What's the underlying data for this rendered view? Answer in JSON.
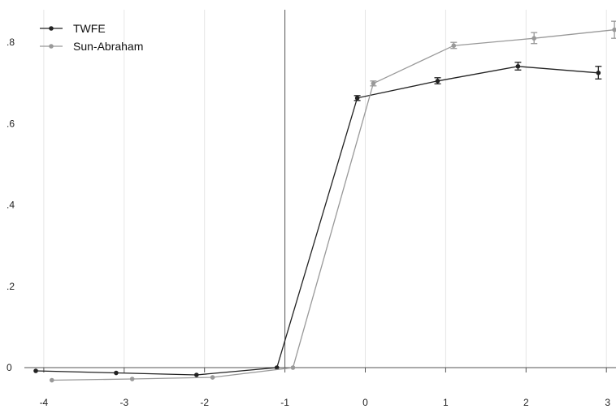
{
  "chart_data": {
    "type": "line",
    "title": "",
    "xlabel": "",
    "ylabel": "",
    "xlim": [
      -4.1,
      3.05
    ],
    "ylim": [
      0,
      0.83
    ],
    "x_ticks": [
      -4,
      -3,
      -2,
      -1,
      0,
      1,
      2,
      3
    ],
    "y_ticks": [
      0,
      0.2,
      0.4,
      0.6,
      0.8
    ],
    "x_tick_labels": [
      "-4",
      "-3",
      "-2",
      "-1",
      "0",
      "1",
      "2",
      "3"
    ],
    "y_tick_labels": [
      "0",
      ".2",
      ".4",
      ".6",
      ".8"
    ],
    "reference_lines": {
      "vertical_x": -1,
      "horizontal_y": 0
    },
    "grid": "vertical lines at x ticks, light grey",
    "legend_position": "top-left",
    "series": [
      {
        "name": "TWFE",
        "color": "#222222",
        "x": [
          -4.1,
          -3.1,
          -2.1,
          -1.1,
          -0.1,
          0.9,
          1.9,
          2.9
        ],
        "y": [
          -0.008,
          -0.013,
          -0.018,
          0.0,
          0.663,
          0.705,
          0.741,
          0.725
        ],
        "ci_low": [
          null,
          null,
          null,
          null,
          0.657,
          0.698,
          0.732,
          0.71
        ],
        "ci_high": [
          null,
          null,
          null,
          null,
          0.669,
          0.713,
          0.751,
          0.741
        ]
      },
      {
        "name": "Sun-Abraham",
        "color": "#999999",
        "x": [
          -3.9,
          -2.9,
          -1.9,
          -0.9,
          0.1,
          1.1,
          2.1,
          3.1
        ],
        "y": [
          -0.031,
          -0.028,
          -0.024,
          0.0,
          0.699,
          0.792,
          0.81,
          0.831
        ],
        "ci_low": [
          null,
          null,
          null,
          null,
          0.693,
          0.785,
          0.797,
          0.81
        ],
        "ci_high": [
          null,
          null,
          null,
          null,
          0.705,
          0.8,
          0.824,
          0.852
        ]
      }
    ]
  }
}
